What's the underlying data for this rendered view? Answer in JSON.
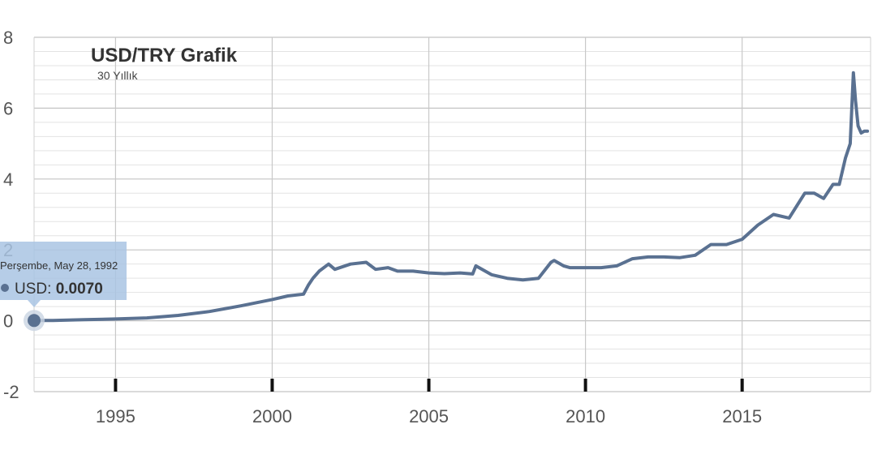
{
  "chart_data": {
    "type": "line",
    "title": "USD/TRY Grafik",
    "subtitle": "30 Yıllık",
    "ylim": [
      -2,
      8
    ],
    "xlim": [
      1992.4,
      2019.1
    ],
    "y_ticks": [
      -2,
      0,
      2,
      4,
      6,
      8
    ],
    "x_ticks": [
      1995,
      2000,
      2005,
      2010,
      2015
    ],
    "grid": true,
    "line_color": "#5a7191",
    "series": [
      {
        "name": "USD",
        "x": [
          1992.4,
          1993.0,
          1994.0,
          1995.0,
          1996.0,
          1997.0,
          1998.0,
          1999.0,
          2000.0,
          2000.5,
          2001.0,
          2001.15,
          2001.3,
          2001.5,
          2001.8,
          2002.0,
          2002.5,
          2003.0,
          2003.3,
          2003.7,
          2004.0,
          2004.5,
          2005.0,
          2005.5,
          2006.0,
          2006.4,
          2006.5,
          2006.8,
          2007.0,
          2007.5,
          2008.0,
          2008.5,
          2008.9,
          2009.0,
          2009.3,
          2009.5,
          2010.0,
          2010.5,
          2011.0,
          2011.5,
          2012.0,
          2012.5,
          2013.0,
          2013.5,
          2014.0,
          2014.5,
          2015.0,
          2015.5,
          2016.0,
          2016.5,
          2017.0,
          2017.3,
          2017.6,
          2017.9,
          2018.1,
          2018.3,
          2018.45,
          2018.55,
          2018.62,
          2018.7,
          2018.8,
          2018.9,
          2019.0
        ],
        "values": [
          0.007,
          0.01,
          0.03,
          0.05,
          0.08,
          0.15,
          0.26,
          0.42,
          0.6,
          0.7,
          0.75,
          1.0,
          1.2,
          1.4,
          1.6,
          1.45,
          1.6,
          1.65,
          1.45,
          1.5,
          1.4,
          1.4,
          1.35,
          1.33,
          1.35,
          1.32,
          1.55,
          1.4,
          1.3,
          1.2,
          1.15,
          1.2,
          1.65,
          1.7,
          1.55,
          1.5,
          1.5,
          1.5,
          1.55,
          1.75,
          1.8,
          1.8,
          1.78,
          1.85,
          2.15,
          2.15,
          2.3,
          2.7,
          3.0,
          2.9,
          3.6,
          3.6,
          3.45,
          3.85,
          3.85,
          4.6,
          5.0,
          7.0,
          6.2,
          5.5,
          5.3,
          5.35,
          5.35
        ]
      }
    ]
  },
  "tooltip": {
    "date": "Perşembe, May 28, 1992",
    "series_label": "USD: ",
    "value": "0.0070",
    "x": 1992.4,
    "y": 0.007
  }
}
